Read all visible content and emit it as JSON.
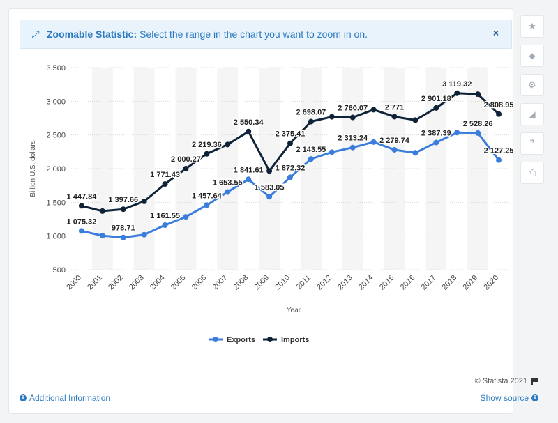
{
  "banner": {
    "title": "Zoomable Statistic:",
    "text": "Select the range in the chart you want to zoom in on.",
    "close": "×"
  },
  "sidebar": {
    "items": [
      {
        "name": "favorite-star-button",
        "glyph": "★"
      },
      {
        "name": "notification-bell-button",
        "glyph": "🔔"
      },
      {
        "name": "settings-gear-button",
        "glyph": "⚙"
      },
      {
        "name": "share-button",
        "glyph": "<"
      },
      {
        "name": "cite-quote-button",
        "glyph": "❞"
      },
      {
        "name": "print-button",
        "glyph": "⎙"
      }
    ]
  },
  "footer": {
    "copyright": "© Statista 2021",
    "additional_info": "Additional Information",
    "show_source": "Show source"
  },
  "colors": {
    "exports": "#3a7ddc",
    "imports": "#0e2238",
    "grid": "#d9d9d9",
    "band": "#f5f5f5",
    "accent": "#2b79c2"
  },
  "chart_data": {
    "type": "line",
    "title": "",
    "xlabel": "Year",
    "ylabel": "Billion U.S. dollars",
    "ylim": [
      500,
      3500
    ],
    "yticks": [
      500,
      1000,
      1500,
      2000,
      2500,
      3000,
      3500
    ],
    "ytick_labels": [
      "500",
      "1 000",
      "1 500",
      "2 000",
      "2 500",
      "3 000",
      "3 500"
    ],
    "categories": [
      "2000",
      "2001",
      "2002",
      "2003",
      "2004",
      "2005",
      "2006",
      "2007",
      "2008",
      "2009",
      "2010",
      "2011",
      "2012",
      "2013",
      "2014",
      "2015",
      "2016",
      "2017",
      "2018",
      "2019",
      "2020"
    ],
    "legend_position": "bottom",
    "grid": true,
    "series": [
      {
        "name": "Exports",
        "color": "#3a7ddc",
        "values": [
          1075.32,
          1005,
          978.71,
          1020,
          1161.55,
          1285,
          1457.64,
          1653.55,
          1841.61,
          1583.05,
          1872.32,
          2143.55,
          2245,
          2313.24,
          2395,
          2279.74,
          2235,
          2387.39,
          2535,
          2528.26,
          2127.25
        ],
        "labels": [
          "1 075.32",
          null,
          "978.71",
          null,
          "1 161.55",
          null,
          "1 457.64",
          "1 653.55",
          "1 841.61",
          "1 583.05",
          "1 872.32",
          "2 143.55",
          null,
          "2 313.24",
          null,
          "2 279.74",
          null,
          "2 387.39",
          null,
          "2 528.26",
          "2 127.25"
        ]
      },
      {
        "name": "Imports",
        "color": "#0e2238",
        "values": [
          1447.84,
          1370,
          1397.66,
          1515,
          1771.43,
          2000.27,
          2219.36,
          2358,
          2550.34,
          1966,
          2375.41,
          2698.07,
          2770,
          2760.07,
          2875,
          2771,
          2720,
          2901.18,
          3119.32,
          3105,
          2808.95
        ],
        "labels": [
          "1 447.84",
          null,
          "1 397.66",
          null,
          "1 771.43",
          "2 000.27",
          "2 219.36",
          null,
          "2 550.34",
          null,
          "2 375.41",
          "2 698.07",
          null,
          "2 760.07",
          null,
          "2 771",
          null,
          "2 901.18",
          "3 119.32",
          null,
          "2 808.95"
        ]
      }
    ]
  }
}
